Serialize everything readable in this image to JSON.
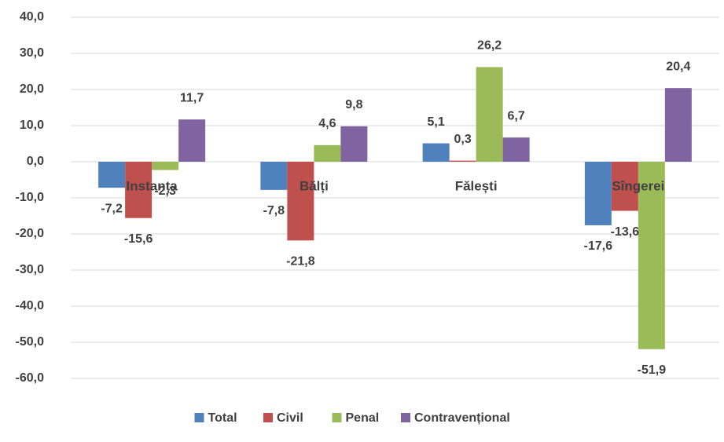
{
  "chart_data": {
    "type": "bar",
    "categories": [
      "Instanța",
      "Bălți",
      "Fălești",
      "Sîngerei"
    ],
    "series": [
      {
        "name": "Total",
        "color": "#4f81bd",
        "values": [
          -7.2,
          -7.8,
          5.1,
          -17.6
        ],
        "value_labels": [
          "-7,2",
          "-7,8",
          "5,1",
          "-17,6"
        ]
      },
      {
        "name": "Civil",
        "color": "#c0504d",
        "values": [
          -15.6,
          -21.8,
          0.3,
          -13.6
        ],
        "value_labels": [
          "-15,6",
          "-21,8",
          "0,3",
          "-13,6"
        ]
      },
      {
        "name": "Penal",
        "color": "#9bbb59",
        "values": [
          -2.3,
          4.6,
          26.2,
          -51.9
        ],
        "value_labels": [
          "-2,3",
          "4,6",
          "26,2",
          "-51,9"
        ]
      },
      {
        "name": "Contravențional",
        "color": "#8064a2",
        "values": [
          11.7,
          9.8,
          6.7,
          20.4
        ],
        "value_labels": [
          "11,7",
          "9,8",
          "6,7",
          "20,4"
        ]
      }
    ],
    "ylim": [
      -60,
      40
    ],
    "yticks": [
      {
        "value": -60,
        "label": "-60,0"
      },
      {
        "value": -50,
        "label": "-50,0"
      },
      {
        "value": -40,
        "label": "-40,0"
      },
      {
        "value": -30,
        "label": "-30,0"
      },
      {
        "value": -20,
        "label": "-20,0"
      },
      {
        "value": -10,
        "label": "-10,0"
      },
      {
        "value": 0,
        "label": "0,0"
      },
      {
        "value": 10,
        "label": "10,0"
      },
      {
        "value": 20,
        "label": "20,0"
      },
      {
        "value": 30,
        "label": "30,0"
      },
      {
        "value": 40,
        "label": "40,0"
      }
    ],
    "grid": true,
    "legend": "bottom"
  }
}
